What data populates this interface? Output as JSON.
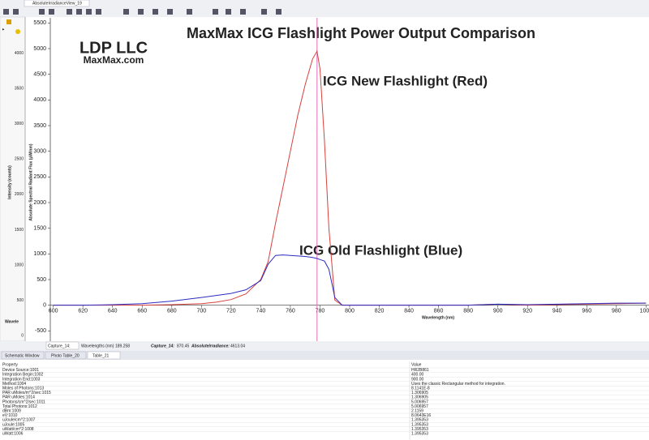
{
  "tabs": {
    "view": "AbsoluteIrradianceView_19",
    "bottom": [
      "Schematic Window",
      "Photo Table_20",
      "Table_21"
    ]
  },
  "left_panel": {
    "ylim": [
      0,
      4400
    ],
    "yticks": [
      0,
      500,
      1000,
      1500,
      2000,
      2500,
      3000,
      3500,
      4000
    ],
    "ylabel": "Intensity (counts)",
    "xlabel": "Wavele"
  },
  "chart_data": {
    "type": "line",
    "title": "MaxMax ICG Flashlight Power Output Comparison",
    "annotations": [
      "LDP LLC",
      "MaxMax.com",
      "ICG New Flashlight (Red)",
      "ICG Old Flashlight (Blue)"
    ],
    "x_label": "Wavelength (nm)",
    "y_label": "Absolute Spectral Radiant Flux (µW/nm)",
    "x": [
      600,
      620,
      640,
      660,
      680,
      700,
      710,
      720,
      730,
      740,
      745,
      750,
      755,
      760,
      765,
      770,
      775,
      778,
      780,
      783,
      786,
      790,
      795,
      800,
      820,
      840,
      860,
      880,
      900,
      920,
      940,
      960,
      980,
      1000
    ],
    "series": [
      {
        "name": "ICG New Flashlight (Red)",
        "color": "#d8403c",
        "values": [
          0,
          0,
          0,
          0,
          10,
          30,
          60,
          110,
          220,
          500,
          850,
          1600,
          2300,
          3000,
          3700,
          4300,
          4800,
          4950,
          4600,
          3200,
          1500,
          100,
          0,
          0,
          0,
          0,
          0,
          0,
          20,
          0,
          10,
          20,
          30,
          40
        ]
      },
      {
        "name": "ICG Old Flashlight (Blue)",
        "color": "#2c2cc0",
        "values": [
          0,
          0,
          10,
          30,
          80,
          150,
          190,
          230,
          300,
          480,
          800,
          970,
          980,
          970,
          960,
          950,
          930,
          910,
          890,
          860,
          700,
          150,
          0,
          0,
          0,
          0,
          0,
          0,
          20,
          10,
          20,
          30,
          40,
          40
        ]
      }
    ],
    "cursor_x": 778,
    "cursor_color": "#e070b8",
    "xlim": [
      598,
      1002
    ],
    "ylim": [
      -700,
      5600
    ],
    "xticks": [
      600,
      620,
      640,
      660,
      680,
      700,
      720,
      740,
      760,
      780,
      800,
      820,
      840,
      860,
      880,
      900,
      920,
      940,
      960,
      980,
      1000
    ],
    "yticks": [
      -500,
      0,
      500,
      1000,
      1500,
      2000,
      2500,
      3000,
      3500,
      4000,
      4500,
      5000,
      5500
    ],
    "grid": false
  },
  "status": {
    "capture": "Capture_14:",
    "wavelength_label": "Wavelengths (nm)",
    "wavelength_value": "189.258",
    "readout": [
      "Capture_14:",
      "870.45",
      "AbsoluteIrradiance:",
      "4613.04"
    ]
  },
  "table": {
    "header": [
      "Property",
      "Value"
    ],
    "rows": [
      [
        "Device Source:1001",
        "HR2B861"
      ],
      [
        "Integration Begin:1002",
        "400.00"
      ],
      [
        "Integration End:1003",
        "900.00"
      ],
      [
        "Method:1004",
        "Uses the classic Rectangular method for integration."
      ],
      [
        "Moles of Photons:1013",
        "8.1141E-8"
      ],
      [
        "PAR uMoles/m^2/sec:1015",
        "1.306905"
      ],
      [
        "PAR uMoles:1014",
        "1.306905"
      ],
      [
        "Photons/cm^2/sec:1011",
        "5.006957"
      ],
      [
        "Total Photons:1012",
        "5.006957"
      ],
      [
        "dBm:1009",
        "2.1159"
      ],
      [
        "eV:1010",
        "8.0643E16"
      ],
      [
        "uJoule/cm^2:1007",
        "1.395353"
      ],
      [
        "uJoule:1005",
        "1.395353"
      ],
      [
        "uWatt/cm^2:1008",
        "1.395353"
      ],
      [
        "uWatt:1006",
        "1.395353"
      ]
    ]
  }
}
